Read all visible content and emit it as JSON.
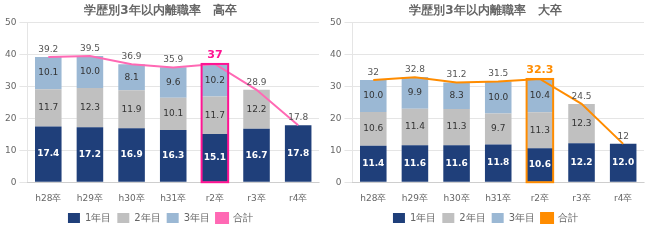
{
  "chart_data": [
    {
      "type": "bar",
      "title": "学歴別3年以内離職率　高卒",
      "categories": [
        "h28卒",
        "h29卒",
        "h30卒",
        "h31卒",
        "r2卒",
        "r3卒",
        "r4卒"
      ],
      "stacked": true,
      "ylim": [
        0,
        50
      ],
      "yticks": [
        0,
        10,
        20,
        30,
        40,
        50
      ],
      "grid": true,
      "legend": "bottom",
      "data_labels": true,
      "series": [
        {
          "name": "1年目",
          "color": "#1F3F7A",
          "values": [
            17.4,
            17.2,
            16.9,
            16.3,
            15.1,
            16.7,
            17.8
          ],
          "value_labels": [
            "17.4",
            "17.2",
            "16.9",
            "16.3",
            "15.1",
            "16.7",
            "17.8"
          ]
        },
        {
          "name": "2年目",
          "color": "#C0C0C0",
          "values": [
            11.7,
            12.3,
            11.9,
            10.1,
            11.7,
            12.2,
            0
          ],
          "value_labels": [
            "11.7",
            "12.3",
            "11.9",
            "10.1",
            "11.7",
            "12.2",
            null
          ]
        },
        {
          "name": "3年目",
          "color": "#9BB8D4",
          "values": [
            10.1,
            10.0,
            8.1,
            9.6,
            10.2,
            0,
            0
          ],
          "value_labels": [
            "10.1",
            "10.0",
            "8.1",
            "9.6",
            "10.2",
            null,
            null
          ]
        },
        {
          "name": "合計",
          "type": "line",
          "color": "#FF69B4",
          "values": [
            39.2,
            39.5,
            36.9,
            35.9,
            37.0,
            28.9,
            17.8
          ],
          "value_labels": [
            "39.2",
            "39.5",
            "36.9",
            "35.9",
            "37",
            "28.9",
            "17.8"
          ],
          "colors": [
            "#555555",
            "#555555",
            "#555555",
            "#555555",
            "#FF1493",
            "#555555",
            "#555555"
          ]
        }
      ]
    },
    {
      "type": "bar",
      "title": "学歴別3年以内離職率　大卒",
      "categories": [
        "h28卒",
        "h29卒",
        "h30卒",
        "h31卒",
        "r2卒",
        "r3卒",
        "r4卒"
      ],
      "stacked": true,
      "ylim": [
        0,
        50
      ],
      "yticks": [
        0,
        10,
        20,
        30,
        40,
        50
      ],
      "grid": true,
      "legend": "bottom",
      "data_labels": true,
      "series": [
        {
          "name": "1年目",
          "color": "#1F3F7A",
          "values": [
            11.4,
            11.6,
            11.6,
            11.8,
            10.6,
            12.2,
            12.0
          ],
          "value_labels": [
            "11.4",
            "11.6",
            "11.6",
            "11.8",
            "10.6",
            "12.2",
            "12.0"
          ]
        },
        {
          "name": "2年目",
          "color": "#C0C0C0",
          "values": [
            10.6,
            11.4,
            11.3,
            9.7,
            11.3,
            12.3,
            0
          ],
          "value_labels": [
            "10.6",
            "11.4",
            "11.3",
            "9.7",
            "11.3",
            "12.3",
            null
          ]
        },
        {
          "name": "3年目",
          "color": "#9BB8D4",
          "values": [
            10.0,
            9.9,
            8.3,
            10.0,
            10.4,
            0,
            0
          ],
          "value_labels": [
            "10.0",
            "9.9",
            "8.3",
            "10.0",
            "10.4",
            null,
            null
          ]
        },
        {
          "name": "合計",
          "type": "line",
          "color": "#FF8C00",
          "values": [
            32.0,
            32.8,
            31.2,
            31.5,
            32.3,
            24.5,
            12.0
          ],
          "value_labels": [
            "32",
            "32.8",
            "31.2",
            "31.5",
            "32.3",
            "24.5",
            "12"
          ],
          "colors": [
            "#555555",
            "#555555",
            "#555555",
            "#555555",
            "#FF8C00",
            "#555555",
            "#555555"
          ]
        }
      ]
    }
  ]
}
